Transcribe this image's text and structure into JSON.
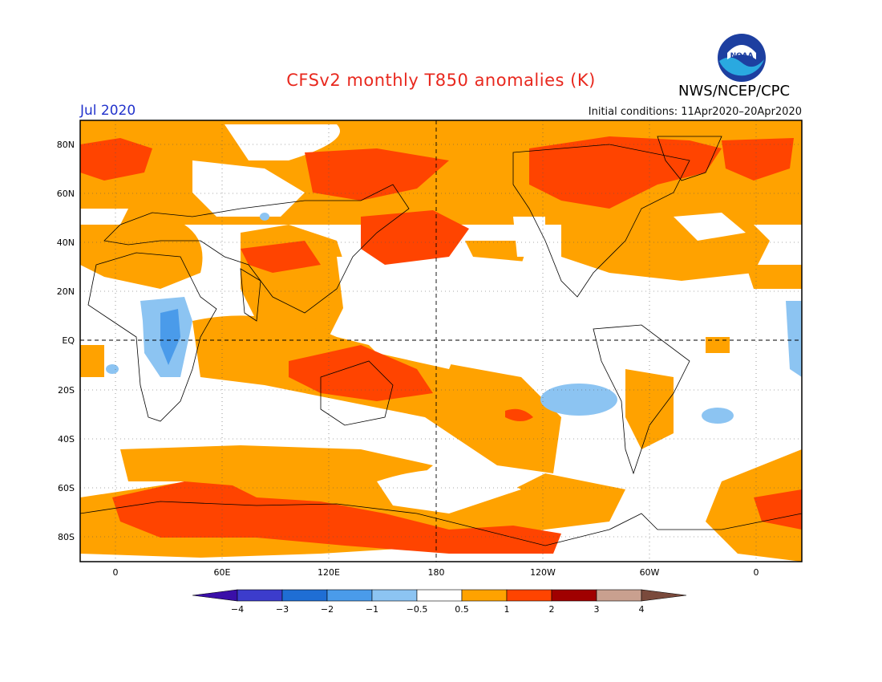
{
  "header": {
    "title": "CFSv2 monthly T850 anomalies (K)",
    "valid_month": "Jul 2020",
    "initial_conditions": "Initial conditions: 11Apr2020–20Apr2020",
    "agency": "NWS/NCEP/CPC",
    "logo_text": "NOAA"
  },
  "map": {
    "lat_labels": [
      "80N",
      "60N",
      "40N",
      "20N",
      "EQ",
      "20S",
      "40S",
      "60S",
      "80S"
    ],
    "lon_labels": [
      "0",
      "60E",
      "120E",
      "180",
      "120W",
      "60W",
      "0"
    ]
  },
  "legend": {
    "ticks": [
      "−4",
      "−3",
      "−2",
      "−1",
      "−0.5",
      "0.5",
      "1",
      "2",
      "3",
      "4"
    ],
    "colors": [
      "#3a0fa8",
      "#3c3ccc",
      "#1f6ed4",
      "#4a9bea",
      "#8cc4f2",
      "#ffffff",
      "#ffa200",
      "#ff4400",
      "#a00000",
      "#c9a08f",
      "#7a4a3c"
    ]
  },
  "colors": {
    "weak_warm": "#ffa200",
    "moderate_warm": "#ff4400",
    "strong_warm": "#a00000",
    "weak_cool": "#8cc4f2",
    "moderate_cool": "#4a9bea"
  }
}
